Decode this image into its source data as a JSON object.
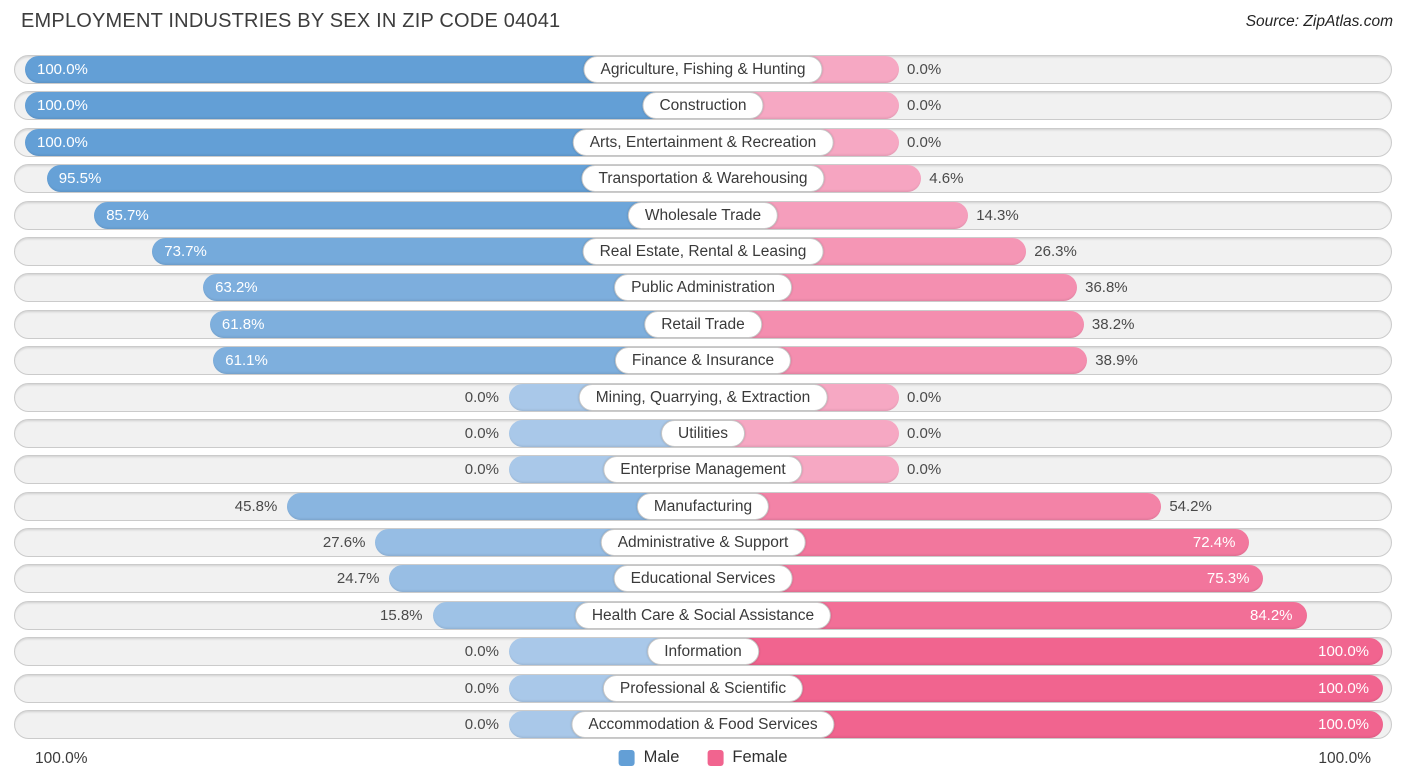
{
  "title": "EMPLOYMENT INDUSTRIES BY SEX IN ZIP CODE 04041",
  "source": "Source: ZipAtlas.com",
  "legend": {
    "male_label": "Male",
    "female_label": "Female"
  },
  "axis": {
    "left_max_label": "100.0%",
    "right_max_label": "100.0%"
  },
  "colors": {
    "male_full": "#639fd6",
    "male_zero": "#a9c8e9",
    "female_full": "#f1648f",
    "female_zero": "#f6a8c3",
    "row_bg": "#f1f1f1",
    "row_border": "#cbcbcb",
    "value_outside_text": "#4a4a4a",
    "value_inside_text": "#ffffff"
  },
  "chart_data": {
    "type": "bar",
    "orientation": "diverging-horizontal",
    "title": "EMPLOYMENT INDUSTRIES BY SEX IN ZIP CODE 04041",
    "value_unit": "percent",
    "axis_range_each_side": [
      0,
      100
    ],
    "legend_position": "bottom-center",
    "categories": [
      "Agriculture, Fishing & Hunting",
      "Construction",
      "Arts, Entertainment & Recreation",
      "Transportation & Warehousing",
      "Wholesale Trade",
      "Real Estate, Rental & Leasing",
      "Public Administration",
      "Retail Trade",
      "Finance & Insurance",
      "Mining, Quarrying, & Extraction",
      "Utilities",
      "Enterprise Management",
      "Manufacturing",
      "Administrative & Support",
      "Educational Services",
      "Health Care & Social Assistance",
      "Information",
      "Professional & Scientific",
      "Accommodation & Food Services"
    ],
    "series": [
      {
        "name": "Male",
        "values": [
          100.0,
          100.0,
          100.0,
          95.5,
          85.7,
          73.7,
          63.2,
          61.8,
          61.1,
          0.0,
          0.0,
          0.0,
          45.8,
          27.6,
          24.7,
          15.8,
          0.0,
          0.0,
          0.0
        ]
      },
      {
        "name": "Female",
        "values": [
          0.0,
          0.0,
          0.0,
          4.6,
          14.3,
          26.3,
          36.8,
          38.2,
          38.9,
          0.0,
          0.0,
          0.0,
          54.2,
          72.4,
          75.3,
          84.2,
          100.0,
          100.0,
          100.0
        ]
      }
    ]
  }
}
